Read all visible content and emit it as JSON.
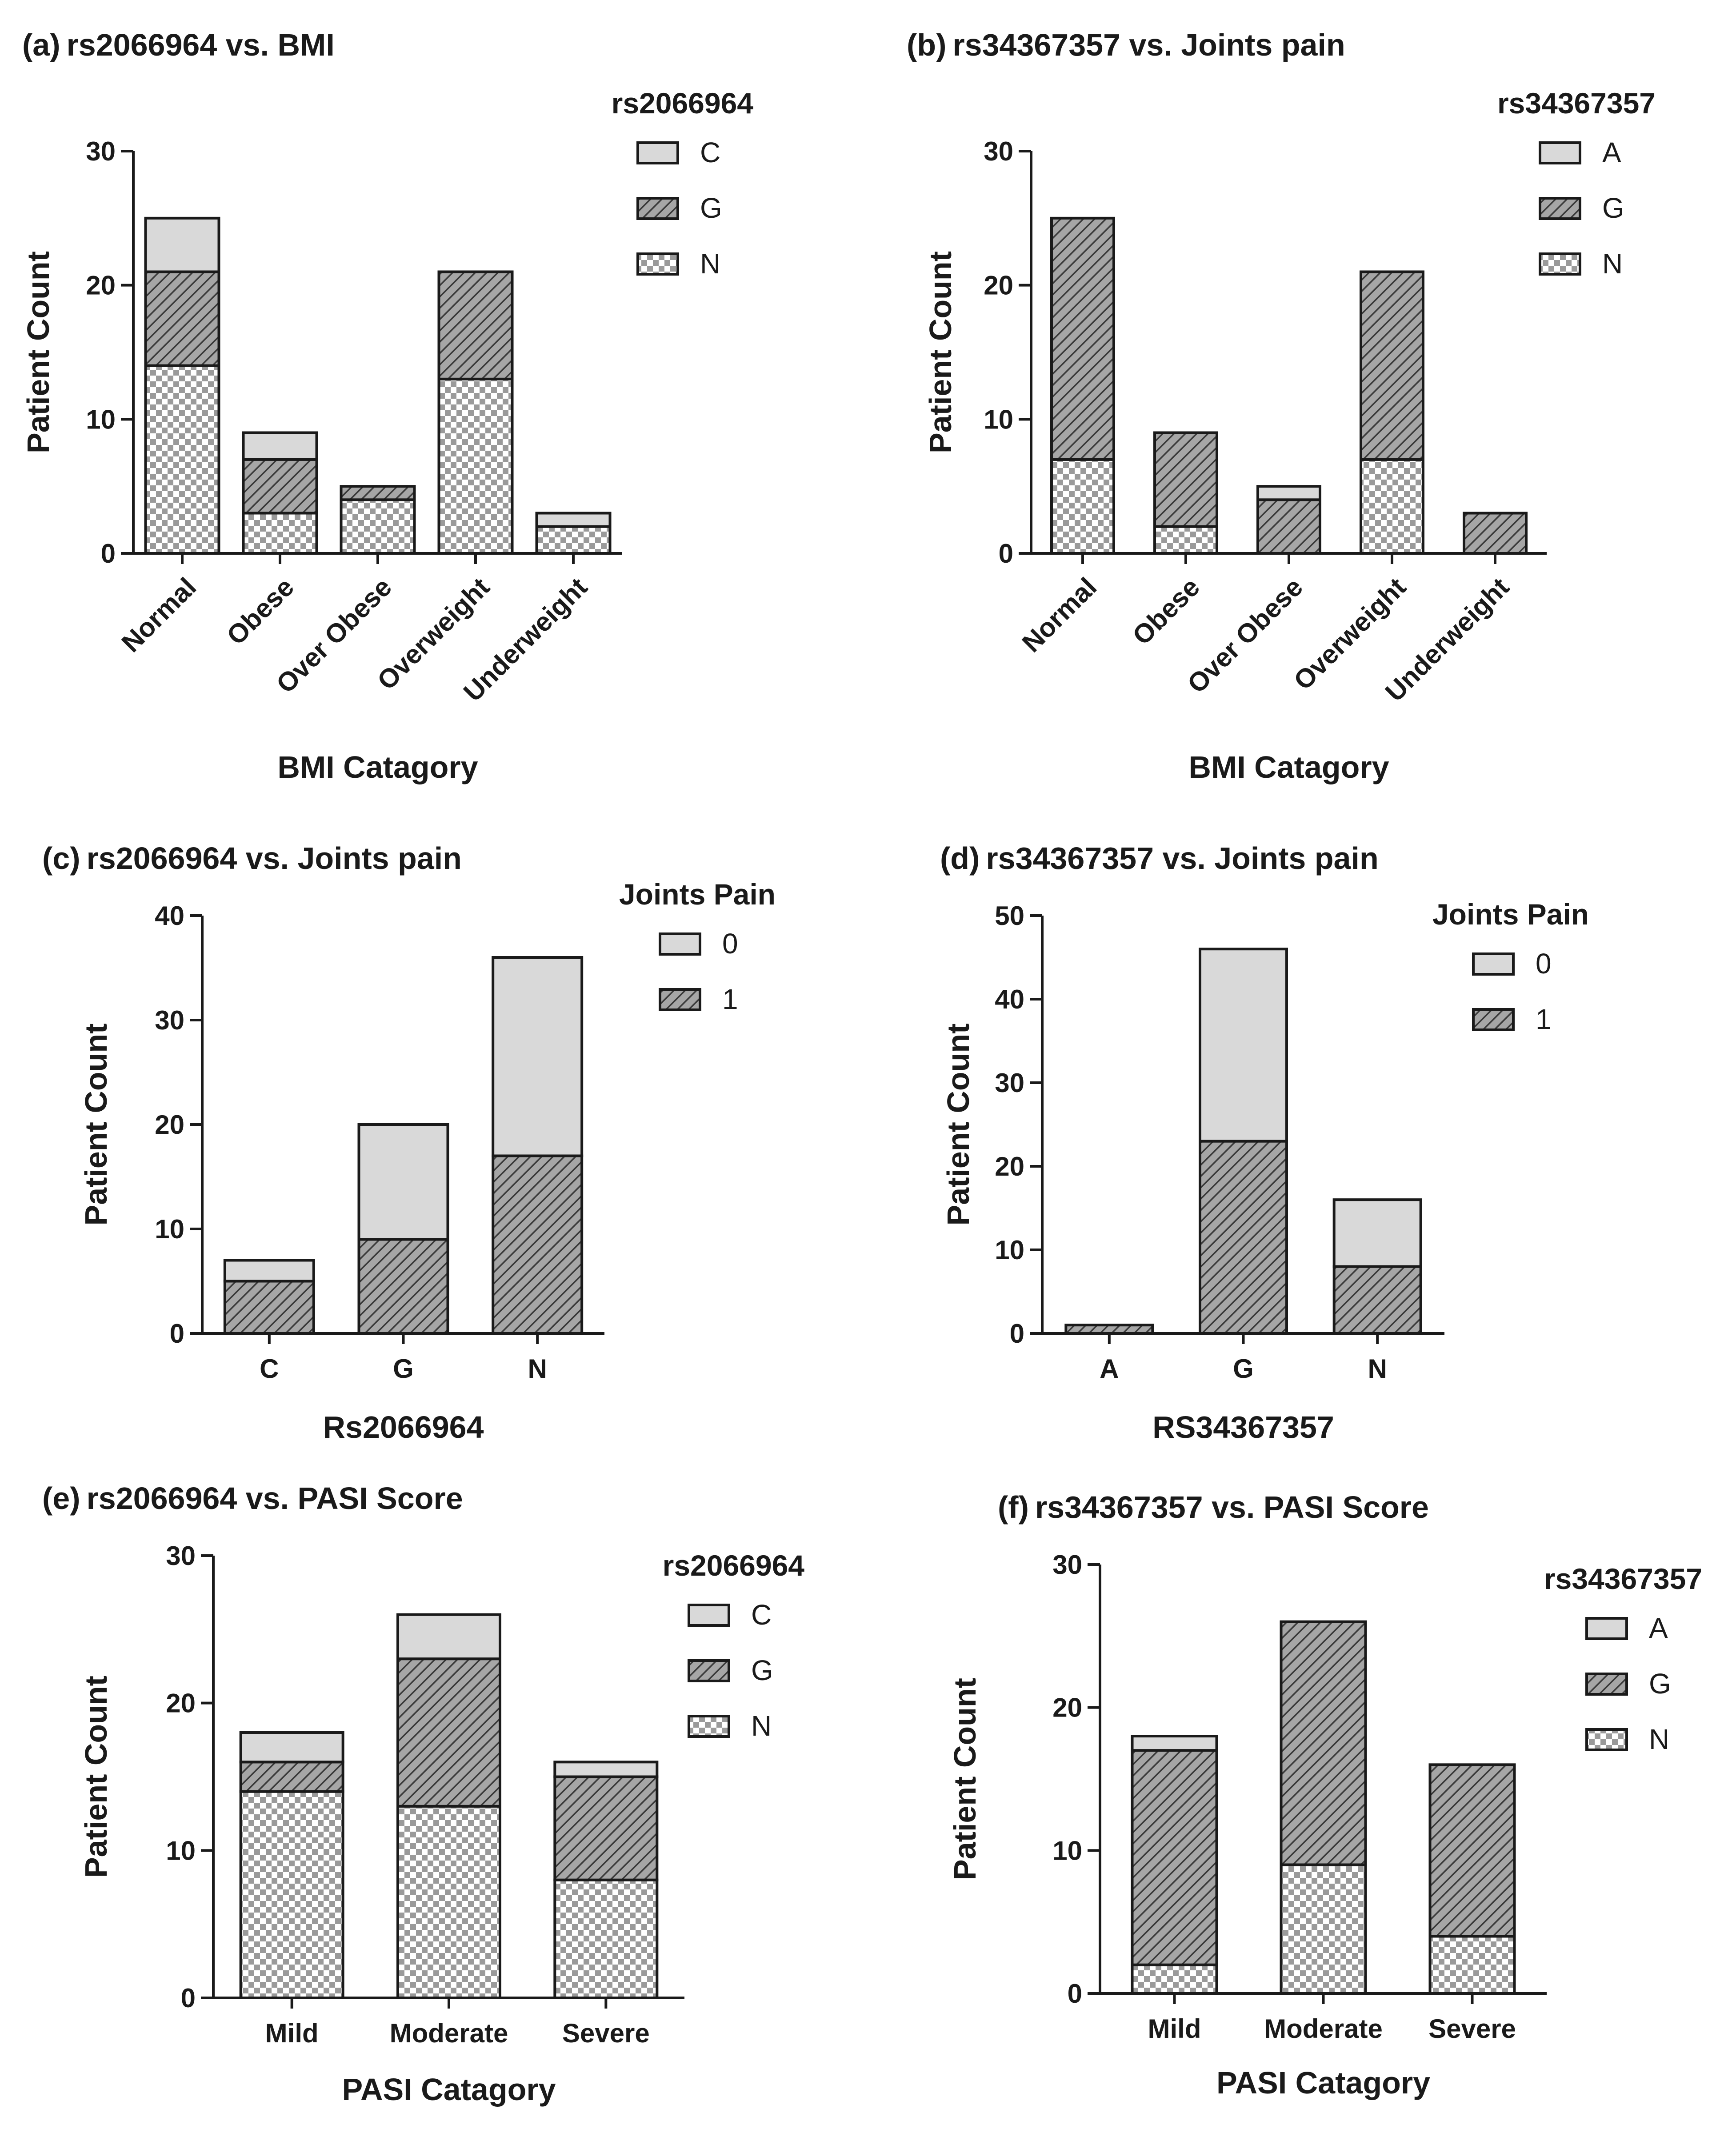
{
  "colors": {
    "axis": "#1a1a1a",
    "light_fill": "#d9d9d9",
    "hatch_fill": "#a6a6a6",
    "checker_fill": "#bfbfbf",
    "background": "#ffffff"
  },
  "chart_data": [
    {
      "panel": "(a)",
      "title": "rs2066964 vs. BMI",
      "type": "bar",
      "stacked": true,
      "xlabel": "BMI Catagory",
      "ylabel": "Patient Count",
      "ylim": [
        0,
        30
      ],
      "yticks": [
        0,
        10,
        20,
        30
      ],
      "categories": [
        "Normal",
        "Obese",
        "Over Obese",
        "Overweight",
        "Underweight"
      ],
      "rotate_labels": true,
      "legend_title": "rs2066964",
      "legend_position": "top-right",
      "series": [
        {
          "name": "N",
          "pattern": "checker",
          "values": [
            14,
            3,
            4,
            13,
            2
          ]
        },
        {
          "name": "G",
          "pattern": "hatch",
          "values": [
            7,
            4,
            1,
            8,
            0
          ]
        },
        {
          "name": "C",
          "pattern": "light",
          "values": [
            4,
            2,
            0,
            0,
            1
          ]
        }
      ]
    },
    {
      "panel": "(b)",
      "title": "rs34367357  vs. Joints pain",
      "type": "bar",
      "stacked": true,
      "xlabel": "BMI Catagory",
      "ylabel": "Patient Count",
      "ylim": [
        0,
        30
      ],
      "yticks": [
        0,
        10,
        20,
        30
      ],
      "categories": [
        "Normal",
        "Obese",
        "Over Obese",
        "Overweight",
        "Underweight"
      ],
      "rotate_labels": true,
      "legend_title": "rs34367357",
      "legend_position": "top-right",
      "series": [
        {
          "name": "N",
          "pattern": "checker",
          "values": [
            7,
            2,
            0,
            7,
            0
          ]
        },
        {
          "name": "G",
          "pattern": "hatch",
          "values": [
            18,
            7,
            4,
            14,
            3
          ]
        },
        {
          "name": "A",
          "pattern": "light",
          "values": [
            0,
            0,
            1,
            0,
            0
          ]
        }
      ]
    },
    {
      "panel": "(c)",
      "title": "rs2066964 vs. Joints pain",
      "type": "bar",
      "stacked": true,
      "xlabel": "Rs2066964",
      "ylabel": "Patient Count",
      "ylim": [
        0,
        40
      ],
      "yticks": [
        0,
        10,
        20,
        30,
        40
      ],
      "categories": [
        "C",
        "G",
        "N"
      ],
      "rotate_labels": false,
      "legend_title": "Joints Pain",
      "legend_position": "top-right",
      "series": [
        {
          "name": "1",
          "pattern": "hatch",
          "values": [
            5,
            9,
            17
          ]
        },
        {
          "name": "0",
          "pattern": "light",
          "values": [
            2,
            11,
            19
          ]
        }
      ]
    },
    {
      "panel": "(d)",
      "title": "rs34367357  vs. Joints pain",
      "type": "bar",
      "stacked": true,
      "xlabel": "RS34367357",
      "ylabel": "Patient Count",
      "ylim": [
        0,
        50
      ],
      "yticks": [
        0,
        10,
        20,
        30,
        40,
        50
      ],
      "categories": [
        "A",
        "G",
        "N"
      ],
      "rotate_labels": false,
      "legend_title": "Joints Pain",
      "legend_position": "top-right",
      "series": [
        {
          "name": "1",
          "pattern": "hatch",
          "values": [
            1,
            23,
            8
          ]
        },
        {
          "name": "0",
          "pattern": "light",
          "values": [
            0,
            23,
            8
          ]
        }
      ]
    },
    {
      "panel": "(e)",
      "title": "rs2066964 vs. PASI Score",
      "type": "bar",
      "stacked": true,
      "xlabel": "PASI Catagory",
      "ylabel": "Patient Count",
      "ylim": [
        0,
        30
      ],
      "yticks": [
        0,
        10,
        20,
        30
      ],
      "categories": [
        "Mild",
        "Moderate",
        "Severe"
      ],
      "rotate_labels": false,
      "legend_title": "rs2066964",
      "legend_position": "top-right",
      "series": [
        {
          "name": "N",
          "pattern": "checker",
          "values": [
            14,
            13,
            8
          ]
        },
        {
          "name": "G",
          "pattern": "hatch",
          "values": [
            2,
            10,
            7
          ]
        },
        {
          "name": "C",
          "pattern": "light",
          "values": [
            2,
            3,
            1
          ]
        }
      ]
    },
    {
      "panel": "(f)",
      "title": "rs34367357  vs. PASI Score",
      "type": "bar",
      "stacked": true,
      "xlabel": "PASI Catagory",
      "ylabel": "Patient Count",
      "ylim": [
        0,
        30
      ],
      "yticks": [
        0,
        10,
        20,
        30
      ],
      "categories": [
        "Mild",
        "Moderate",
        "Severe"
      ],
      "rotate_labels": false,
      "legend_title": "rs34367357",
      "legend_position": "top-right",
      "series": [
        {
          "name": "N",
          "pattern": "checker",
          "values": [
            2,
            9,
            4
          ]
        },
        {
          "name": "G",
          "pattern": "hatch",
          "values": [
            15,
            17,
            12
          ]
        },
        {
          "name": "A",
          "pattern": "light",
          "values": [
            1,
            0,
            0
          ]
        }
      ]
    }
  ]
}
